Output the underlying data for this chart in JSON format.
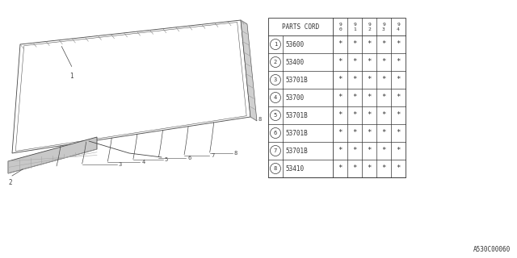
{
  "bg_color": "#ffffff",
  "table": {
    "header_label": "PARTS CORD",
    "year_cols": [
      "9\n0",
      "9\n1",
      "9\n2",
      "9\n3",
      "9\n4"
    ],
    "rows": [
      {
        "num": "1",
        "code": "53600"
      },
      {
        "num": "2",
        "code": "53400"
      },
      {
        "num": "3",
        "code": "53701B"
      },
      {
        "num": "4",
        "code": "53700"
      },
      {
        "num": "5",
        "code": "53701B"
      },
      {
        "num": "6",
        "code": "53701B"
      },
      {
        "num": "7",
        "code": "53701B"
      },
      {
        "num": "8",
        "code": "53410"
      }
    ]
  },
  "footer": "A530C00060",
  "lc": "#444444",
  "lw": 0.6
}
